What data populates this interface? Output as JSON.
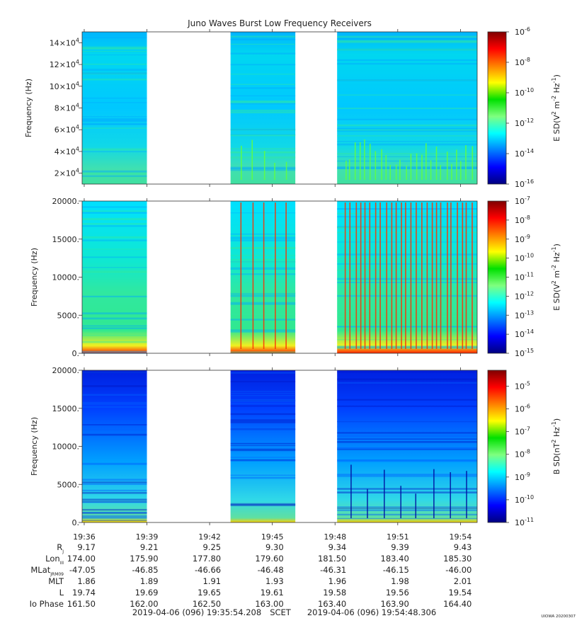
{
  "chart_data": {
    "type": "heatmap",
    "title": "Juno Waves Burst Low Frequency Receivers",
    "time_axis": {
      "tick_labels": [
        "19:36",
        "19:39",
        "19:42",
        "19:45",
        "19:48",
        "19:51",
        "19:54"
      ],
      "tick_minutes": [
        0,
        3,
        6,
        9,
        12,
        15,
        18
      ],
      "range_minutes": [
        -0.1,
        18.8
      ],
      "data_intervals_minutes": [
        [
          -0.1,
          3.0
        ],
        [
          7.0,
          10.1
        ],
        [
          12.1,
          18.8
        ]
      ]
    },
    "panels": [
      {
        "ylabel": "Frequency (Hz)",
        "ylim": [
          10000,
          150000
        ],
        "y_ticks": [
          20000,
          40000,
          60000,
          80000,
          100000,
          120000,
          140000
        ],
        "y_tick_labels": [
          [
            "2",
            "4"
          ],
          [
            "4",
            "4"
          ],
          [
            "6",
            "4"
          ],
          [
            "8",
            "4"
          ],
          [
            "10",
            "4"
          ],
          [
            "12",
            "4"
          ],
          [
            "14",
            "4"
          ]
        ],
        "y_tick_prefix": "×10",
        "colorbar": {
          "label": "E SD(V",
          "label_exp": "2",
          "label_mid": " m",
          "label_exp2": "-2",
          "label_end": " Hz",
          "label_exp3": "-1",
          "label_close": ")",
          "range_log10": [
            -16,
            -6
          ],
          "tick_exponents": [
            "-6",
            "-8",
            "-10",
            "-12",
            "-14",
            "-16"
          ]
        }
      },
      {
        "ylabel": "Frequency (Hz)",
        "ylim": [
          0,
          20000
        ],
        "y_ticks": [
          0,
          5000,
          10000,
          15000,
          20000
        ],
        "y_tick_labels": [
          "0.",
          "5000.",
          "10000.",
          "15000.",
          "20000."
        ],
        "colorbar": {
          "label": "E SD(V",
          "label_exp": "2",
          "label_mid": " m",
          "label_exp2": "-2",
          "label_end": " Hz",
          "label_exp3": "-1",
          "label_close": ")",
          "range_log10": [
            -15,
            -7
          ],
          "tick_exponents": [
            "-7",
            "-8",
            "-9",
            "-10",
            "-11",
            "-12",
            "-13",
            "-14",
            "-15"
          ]
        }
      },
      {
        "ylabel": "Frequency (Hz)",
        "ylim": [
          0,
          20000
        ],
        "y_ticks": [
          0,
          5000,
          10000,
          15000,
          20000
        ],
        "y_tick_labels": [
          "0.",
          "5000.",
          "10000.",
          "15000.",
          "20000."
        ],
        "colorbar": {
          "label": "B SD(nT",
          "label_exp": "2",
          "label_mid": " Hz",
          "label_exp2": "-1",
          "label_end": ")",
          "range_log10": [
            -11,
            -4.3
          ],
          "tick_exponents": [
            "-5",
            "-6",
            "-7",
            "-8",
            "-9",
            "-10",
            "-11"
          ]
        }
      }
    ],
    "ephemeris": {
      "rows": [
        {
          "label": "R",
          "sub": "J",
          "values": [
            "9.17",
            "9.21",
            "9.25",
            "9.30",
            "9.34",
            "9.39",
            "9.43"
          ]
        },
        {
          "label": "Lon",
          "sub": "III",
          "values": [
            "174.00",
            "175.90",
            "177.80",
            "179.60",
            "181.50",
            "183.40",
            "185.30"
          ]
        },
        {
          "label": "MLat",
          "sub": "JRM09",
          "values": [
            "-47.05",
            "-46.85",
            "-46.66",
            "-46.48",
            "-46.31",
            "-46.15",
            "-46.00"
          ]
        },
        {
          "label": "MLT",
          "sub": "",
          "values": [
            "1.86",
            "1.89",
            "1.91",
            "1.93",
            "1.96",
            "1.98",
            "2.01"
          ]
        },
        {
          "label": "L",
          "sub": "",
          "values": [
            "19.74",
            "19.69",
            "19.65",
            "19.61",
            "19.58",
            "19.56",
            "19.54"
          ]
        },
        {
          "label": "Io Phase",
          "sub": "",
          "values": [
            "161.50",
            "162.00",
            "162.50",
            "163.00",
            "163.40",
            "163.90",
            "164.40"
          ]
        }
      ]
    },
    "footer": {
      "start": "2019-04-06 (096) 19:35:54.208",
      "scet": "SCET",
      "end": "2019-04-06 (096) 19:54:48.306",
      "credit": "UIOWA 20200307"
    },
    "colormap": [
      "#00007f",
      "#0000ff",
      "#007fff",
      "#00ffff",
      "#7fff7f",
      "#00e000",
      "#ffff00",
      "#ff7f00",
      "#ff0000",
      "#7f0000"
    ],
    "grid": false
  }
}
